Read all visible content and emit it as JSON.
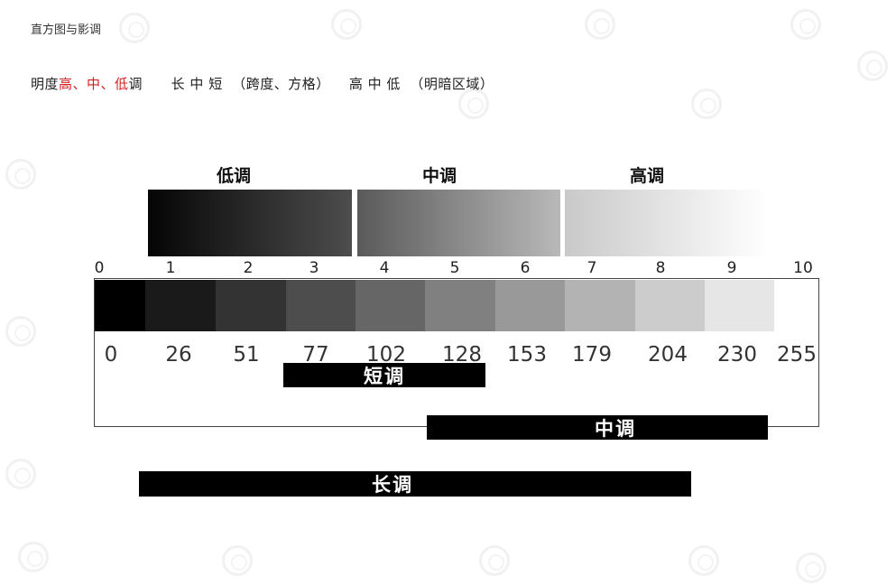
{
  "page_title": "直方图与影调",
  "subtitle": {
    "prefix": "明度",
    "red_part": "高、中、低",
    "suffix": "调",
    "span_text": "长 中 短  （跨度、方格）",
    "zones_text": "高 中 低  （明暗区域）"
  },
  "tone_ranges": [
    {
      "label": "低调"
    },
    {
      "label": "中调"
    },
    {
      "label": "高调"
    }
  ],
  "zone_numbers": [
    "0",
    "1",
    "2",
    "3",
    "4",
    "5",
    "6",
    "7",
    "8",
    "9",
    "10"
  ],
  "swatch_colors": [
    "#000000",
    "#1a1a1a",
    "#333333",
    "#4d4d4d",
    "#666666",
    "#808080",
    "#999999",
    "#b3b3b3",
    "#cccccc",
    "#e6e6e6",
    "#ffffff"
  ],
  "gray_values": [
    "0",
    "26",
    "51",
    "77",
    "102",
    "128",
    "153",
    "179",
    "204",
    "230",
    "255"
  ],
  "range_bars": {
    "short": "短调",
    "mid": "中调",
    "long": "长调"
  }
}
